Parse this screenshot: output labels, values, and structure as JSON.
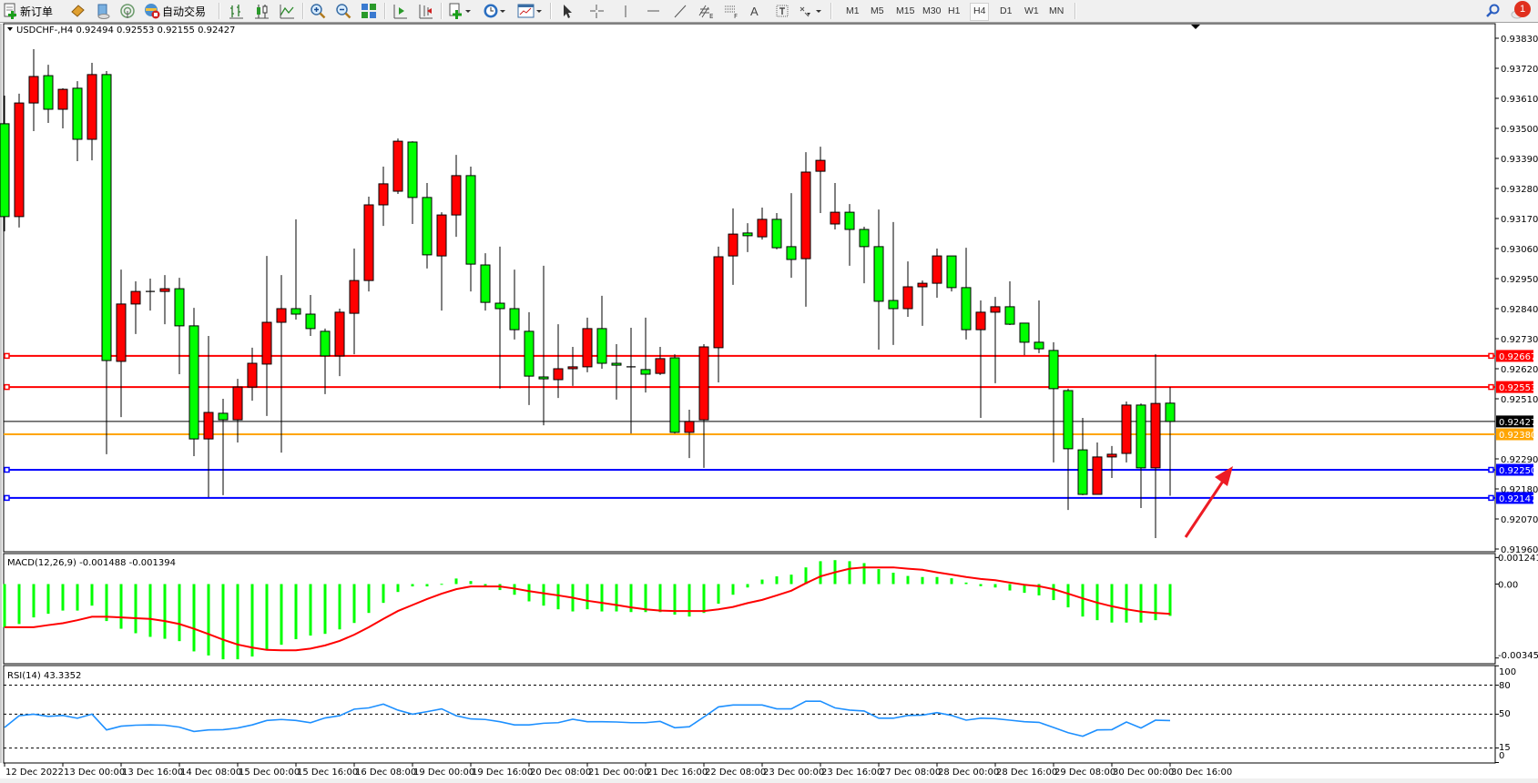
{
  "toolbar": {
    "new_order": "新订单",
    "auto_trading": "自动交易",
    "timeframes": [
      "M1",
      "M5",
      "M15",
      "M30",
      "H1",
      "H4",
      "D1",
      "W1",
      "MN"
    ],
    "active_timeframe": "H4",
    "notification_count": "1",
    "tool_letters": {
      "fibo_expansion": "E",
      "fibo_retracement": "F",
      "text": "A",
      "text_label": "T"
    },
    "icons": [
      "new-order-icon",
      "market-watch-icon",
      "data-window-icon",
      "signals-icon",
      "auto-trading-icon",
      "bar-chart-icon",
      "candlestick-icon",
      "line-chart-icon",
      "zoom-in-icon",
      "zoom-out-icon",
      "tile-windows-icon",
      "auto-scroll-icon",
      "chart-shift-icon",
      "indicators-icon",
      "periods-icon",
      "templates-icon",
      "cursor-icon",
      "crosshair-icon",
      "vertical-line-icon",
      "horizontal-line-icon",
      "trend-line-icon",
      "fibo-expansion-icon",
      "fibo-retracement-icon",
      "text-icon",
      "text-label-icon",
      "arrows-icon",
      "search-icon",
      "notification-icon"
    ]
  },
  "chart": {
    "info_label": "USDCHF-,H4  0.92494 0.92553 0.92155 0.92427",
    "macd_label": "MACD(12,26,9) -0.001488 -0.001394",
    "rsi_label": "RSI(14) 43.3352",
    "time_labels": [
      "12 Dec 2022",
      "13 Dec 00:00",
      "13 Dec 16:00",
      "14 Dec 08:00",
      "15 Dec 00:00",
      "15 Dec 16:00",
      "16 Dec 08:00",
      "19 Dec 00:00",
      "19 Dec 16:00",
      "20 Dec 08:00",
      "21 Dec 00:00",
      "21 Dec 16:00",
      "22 Dec 08:00",
      "23 Dec 00:00",
      "23 Dec 16:00",
      "27 Dec 08:00",
      "28 Dec 00:00",
      "28 Dec 16:00",
      "29 Dec 08:00",
      "30 Dec 00:00",
      "30 Dec 16:00"
    ],
    "annotation_arrow_color": "#ed1c24"
  },
  "chart_data": [
    {
      "type": "candlestick",
      "symbol": "USDCHF-",
      "timeframe": "H4",
      "bull_color": "#ff0000",
      "bear_color": "#00ff00",
      "ohlc_format": [
        "open",
        "high",
        "low",
        "close"
      ],
      "ylim": [
        0.9187,
        0.93887
      ],
      "price_ticks": [
        "0.93830",
        "0.93720",
        "0.93610",
        "0.93500",
        "0.93390",
        "0.93280",
        "0.93170",
        "0.93060",
        "0.92950",
        "0.92840",
        "0.92730",
        "0.92620",
        "0.92510",
        "0.92290",
        "0.92180",
        "0.92070",
        "0.91960"
      ],
      "horizontal_lines": [
        {
          "price": "0.92667",
          "color": "#ff0000",
          "handles": true
        },
        {
          "price": "0.92553",
          "color": "#ff0000",
          "handles": true
        },
        {
          "price": "0.92427",
          "color": "#000000",
          "handles": false,
          "label": "bid"
        },
        {
          "price": "0.92380",
          "color": "#ffa500",
          "handles": false
        },
        {
          "price": "0.92250",
          "color": "#0000ff",
          "handles": true
        },
        {
          "price": "0.92147",
          "color": "#0000ff",
          "handles": true
        }
      ],
      "candles": [
        [
          0.93517,
          0.9362,
          0.93123,
          0.93177
        ],
        [
          0.93177,
          0.93627,
          0.93137,
          0.93593
        ],
        [
          0.93593,
          0.9379,
          0.9349,
          0.9369
        ],
        [
          0.93693,
          0.93733,
          0.9352,
          0.9357
        ],
        [
          0.9357,
          0.93647,
          0.935,
          0.93643
        ],
        [
          0.93647,
          0.93673,
          0.9338,
          0.9346
        ],
        [
          0.9346,
          0.9374,
          0.93383,
          0.93697
        ],
        [
          0.93697,
          0.9371,
          0.92307,
          0.9265
        ],
        [
          0.92647,
          0.92983,
          0.92443,
          0.92857
        ],
        [
          0.92857,
          0.9294,
          0.92747,
          0.92903
        ],
        [
          0.92903,
          0.9295,
          0.92833,
          0.92903
        ],
        [
          0.92903,
          0.92963,
          0.92783,
          0.92913
        ],
        [
          0.92913,
          0.92953,
          0.926,
          0.92777
        ],
        [
          0.92777,
          0.92843,
          0.923,
          0.92363
        ],
        [
          0.92363,
          0.9274,
          0.9215,
          0.9246
        ],
        [
          0.92457,
          0.9251,
          0.92157,
          0.92433
        ],
        [
          0.92433,
          0.92583,
          0.9235,
          0.92553
        ],
        [
          0.92553,
          0.92697,
          0.92503,
          0.9264
        ],
        [
          0.92637,
          0.93033,
          0.92447,
          0.9279
        ],
        [
          0.9279,
          0.92963,
          0.92313,
          0.9284
        ],
        [
          0.9284,
          0.93167,
          0.928,
          0.9282
        ],
        [
          0.9282,
          0.9289,
          0.9274,
          0.92767
        ],
        [
          0.92757,
          0.92767,
          0.92527,
          0.92667
        ],
        [
          0.92667,
          0.9284,
          0.92593,
          0.92827
        ],
        [
          0.92823,
          0.9306,
          0.92673,
          0.92943
        ],
        [
          0.92943,
          0.9325,
          0.92903,
          0.9322
        ],
        [
          0.9322,
          0.9336,
          0.93143,
          0.93297
        ],
        [
          0.9327,
          0.93463,
          0.9326,
          0.93453
        ],
        [
          0.9345,
          0.93453,
          0.9315,
          0.93247
        ],
        [
          0.93247,
          0.933,
          0.92987,
          0.93037
        ],
        [
          0.93033,
          0.93193,
          0.92833,
          0.93183
        ],
        [
          0.93183,
          0.93403,
          0.93103,
          0.93327
        ],
        [
          0.93327,
          0.9336,
          0.92903,
          0.93003
        ],
        [
          0.93,
          0.93043,
          0.92833,
          0.92863
        ],
        [
          0.9286,
          0.93067,
          0.92547,
          0.9284
        ],
        [
          0.9284,
          0.92983,
          0.92727,
          0.92763
        ],
        [
          0.92757,
          0.92827,
          0.92487,
          0.92593
        ],
        [
          0.9259,
          0.92997,
          0.92413,
          0.92583
        ],
        [
          0.9258,
          0.92783,
          0.92513,
          0.9262
        ],
        [
          0.9262,
          0.927,
          0.92557,
          0.92627
        ],
        [
          0.92627,
          0.92807,
          0.92607,
          0.92767
        ],
        [
          0.92767,
          0.92887,
          0.9262,
          0.9264
        ],
        [
          0.9264,
          0.9271,
          0.92507,
          0.92633
        ],
        [
          0.92627,
          0.9277,
          0.92383,
          0.92627
        ],
        [
          0.92617,
          0.92807,
          0.92533,
          0.926
        ],
        [
          0.92603,
          0.927,
          0.92597,
          0.92657
        ],
        [
          0.9266,
          0.92673,
          0.92383,
          0.92387
        ],
        [
          0.92387,
          0.9247,
          0.92293,
          0.92427
        ],
        [
          0.92433,
          0.9271,
          0.92257,
          0.927
        ],
        [
          0.92697,
          0.93067,
          0.9257,
          0.9303
        ],
        [
          0.93033,
          0.93207,
          0.92927,
          0.93113
        ],
        [
          0.93117,
          0.93153,
          0.93047,
          0.93107
        ],
        [
          0.93103,
          0.9321,
          0.93093,
          0.93167
        ],
        [
          0.93167,
          0.9319,
          0.93057,
          0.93063
        ],
        [
          0.93067,
          0.93263,
          0.92953,
          0.9302
        ],
        [
          0.93023,
          0.93413,
          0.92847,
          0.9334
        ],
        [
          0.93343,
          0.93433,
          0.9319,
          0.93383
        ],
        [
          0.9315,
          0.933,
          0.9313,
          0.93193
        ],
        [
          0.93193,
          0.93223,
          0.92997,
          0.9313
        ],
        [
          0.9313,
          0.9314,
          0.92933,
          0.93067
        ],
        [
          0.93067,
          0.93203,
          0.9269,
          0.92867
        ],
        [
          0.9287,
          0.93157,
          0.92707,
          0.9284
        ],
        [
          0.9284,
          0.93013,
          0.9281,
          0.9292
        ],
        [
          0.9292,
          0.92943,
          0.92777,
          0.92933
        ],
        [
          0.92933,
          0.9306,
          0.9288,
          0.93033
        ],
        [
          0.93033,
          0.93033,
          0.92903,
          0.92917
        ],
        [
          0.92917,
          0.93063,
          0.92727,
          0.92763
        ],
        [
          0.92763,
          0.9287,
          0.9244,
          0.92827
        ],
        [
          0.92827,
          0.92883,
          0.92567,
          0.92847
        ],
        [
          0.92847,
          0.9294,
          0.9278,
          0.92783
        ],
        [
          0.92787,
          0.92787,
          0.9267,
          0.92717
        ],
        [
          0.92717,
          0.9287,
          0.92677,
          0.92693
        ],
        [
          0.92687,
          0.92717,
          0.92277,
          0.92547
        ],
        [
          0.9254,
          0.92547,
          0.92103,
          0.92327
        ],
        [
          0.92323,
          0.9244,
          0.92157,
          0.9216
        ],
        [
          0.9216,
          0.9235,
          0.9216,
          0.92297
        ],
        [
          0.92297,
          0.92337,
          0.9222,
          0.92307
        ],
        [
          0.9231,
          0.925,
          0.92277,
          0.92487
        ],
        [
          0.92487,
          0.92493,
          0.9211,
          0.92257
        ],
        [
          0.92257,
          0.92673,
          0.92,
          0.92493
        ],
        [
          0.92494,
          0.92553,
          0.92155,
          0.92427
        ]
      ]
    },
    {
      "type": "bar+line",
      "indicator": "MACD(12,26,9)",
      "axis_labels": [
        "0.001241",
        "0.00",
        "-0.003459"
      ],
      "ylim": [
        -0.003459,
        0.001241
      ],
      "histogram_color": "#00ff00",
      "signal_color": "#ff0000",
      "histogram": [
        -0.00202,
        -0.00187,
        -0.00156,
        -0.00139,
        -0.00124,
        -0.00124,
        -0.00101,
        -0.00173,
        -0.00209,
        -0.0023,
        -0.00247,
        -0.00256,
        -0.00267,
        -0.00315,
        -0.00334,
        -0.00352,
        -0.00352,
        -0.00339,
        -0.00308,
        -0.00284,
        -0.00258,
        -0.00241,
        -0.00233,
        -0.00212,
        -0.00182,
        -0.00135,
        -0.00088,
        -0.00037,
        -0.00011,
        -0.00011,
        1e-05,
        0.00026,
        0.00014,
        -0.00011,
        -0.00028,
        -0.0005,
        -0.00081,
        -0.00101,
        -0.00118,
        -0.00128,
        -0.00118,
        -0.00128,
        -0.00128,
        -0.00131,
        -0.00131,
        -0.00131,
        -0.00143,
        -0.00152,
        -0.00135,
        -0.00092,
        -0.0005,
        -0.00016,
        0.00021,
        0.00036,
        0.00044,
        0.00078,
        0.00107,
        0.00112,
        0.00107,
        0.00098,
        0.0007,
        0.00053,
        0.00038,
        0.00033,
        0.00033,
        0.00027,
        7e-05,
        -0.0001,
        -0.00016,
        -0.0003,
        -0.00041,
        -0.00053,
        -0.00075,
        -0.00109,
        -0.00152,
        -0.00169,
        -0.0018,
        -0.0018,
        -0.0018,
        -0.00169,
        -0.001488
      ],
      "signal": [
        -0.00202,
        -0.00202,
        -0.00202,
        -0.00192,
        -0.00183,
        -0.00169,
        -0.00153,
        -0.00153,
        -0.00156,
        -0.0016,
        -0.00163,
        -0.00173,
        -0.00187,
        -0.00209,
        -0.00234,
        -0.0026,
        -0.00283,
        -0.00297,
        -0.00308,
        -0.0031,
        -0.0031,
        -0.00302,
        -0.00287,
        -0.00266,
        -0.00237,
        -0.00202,
        -0.00163,
        -0.00126,
        -0.00098,
        -0.0007,
        -0.00045,
        -0.00024,
        -0.00011,
        -0.00011,
        -0.00011,
        -0.00021,
        -0.00033,
        -0.00043,
        -0.00053,
        -0.00064,
        -0.00078,
        -0.00088,
        -0.00098,
        -0.00109,
        -0.00118,
        -0.00124,
        -0.00126,
        -0.00126,
        -0.00126,
        -0.00118,
        -0.00107,
        -0.00089,
        -0.00074,
        -0.00053,
        -0.00031,
        4e-05,
        0.00036,
        0.00055,
        0.00072,
        0.00078,
        0.00078,
        0.00078,
        0.00072,
        0.00067,
        0.00055,
        0.00044,
        0.00033,
        0.00024,
        0.00018,
        7e-05,
        -3e-05,
        -0.0001,
        -0.00024,
        -0.00045,
        -0.00067,
        -0.00087,
        -0.00104,
        -0.00118,
        -0.00129,
        -0.00135,
        -0.001394
      ]
    },
    {
      "type": "line",
      "indicator": "RSI(14)",
      "axis_labels": [
        "100",
        "80",
        "50",
        "15",
        "0"
      ],
      "levels": [
        80,
        50,
        15
      ],
      "ylim": [
        0,
        100
      ],
      "line_color": "#1e90ff",
      "values": [
        36.3,
        48.4,
        50.0,
        47.7,
        48.7,
        45.8,
        50.0,
        33.7,
        37.6,
        38.6,
        38.9,
        38.6,
        36.6,
        32.1,
        33.7,
        34.0,
        35.7,
        38.9,
        43.5,
        44.5,
        43.5,
        41.2,
        46.1,
        48.4,
        55.2,
        56.5,
        60.4,
        54.2,
        50.0,
        52.6,
        55.5,
        48.4,
        45.1,
        44.5,
        42.2,
        38.9,
        38.9,
        40.6,
        41.2,
        44.8,
        42.2,
        42.2,
        41.9,
        41.2,
        41.2,
        42.5,
        36.0,
        37.0,
        47.1,
        57.5,
        59.5,
        59.5,
        59.5,
        55.5,
        55.5,
        63.4,
        63.4,
        56.5,
        54.2,
        53.3,
        45.8,
        45.8,
        48.7,
        49.0,
        51.6,
        48.7,
        43.8,
        45.8,
        45.4,
        43.8,
        42.2,
        41.5,
        36.3,
        30.8,
        27.2,
        33.7,
        34.0,
        41.9,
        35.7,
        43.8,
        43.3352
      ]
    }
  ]
}
